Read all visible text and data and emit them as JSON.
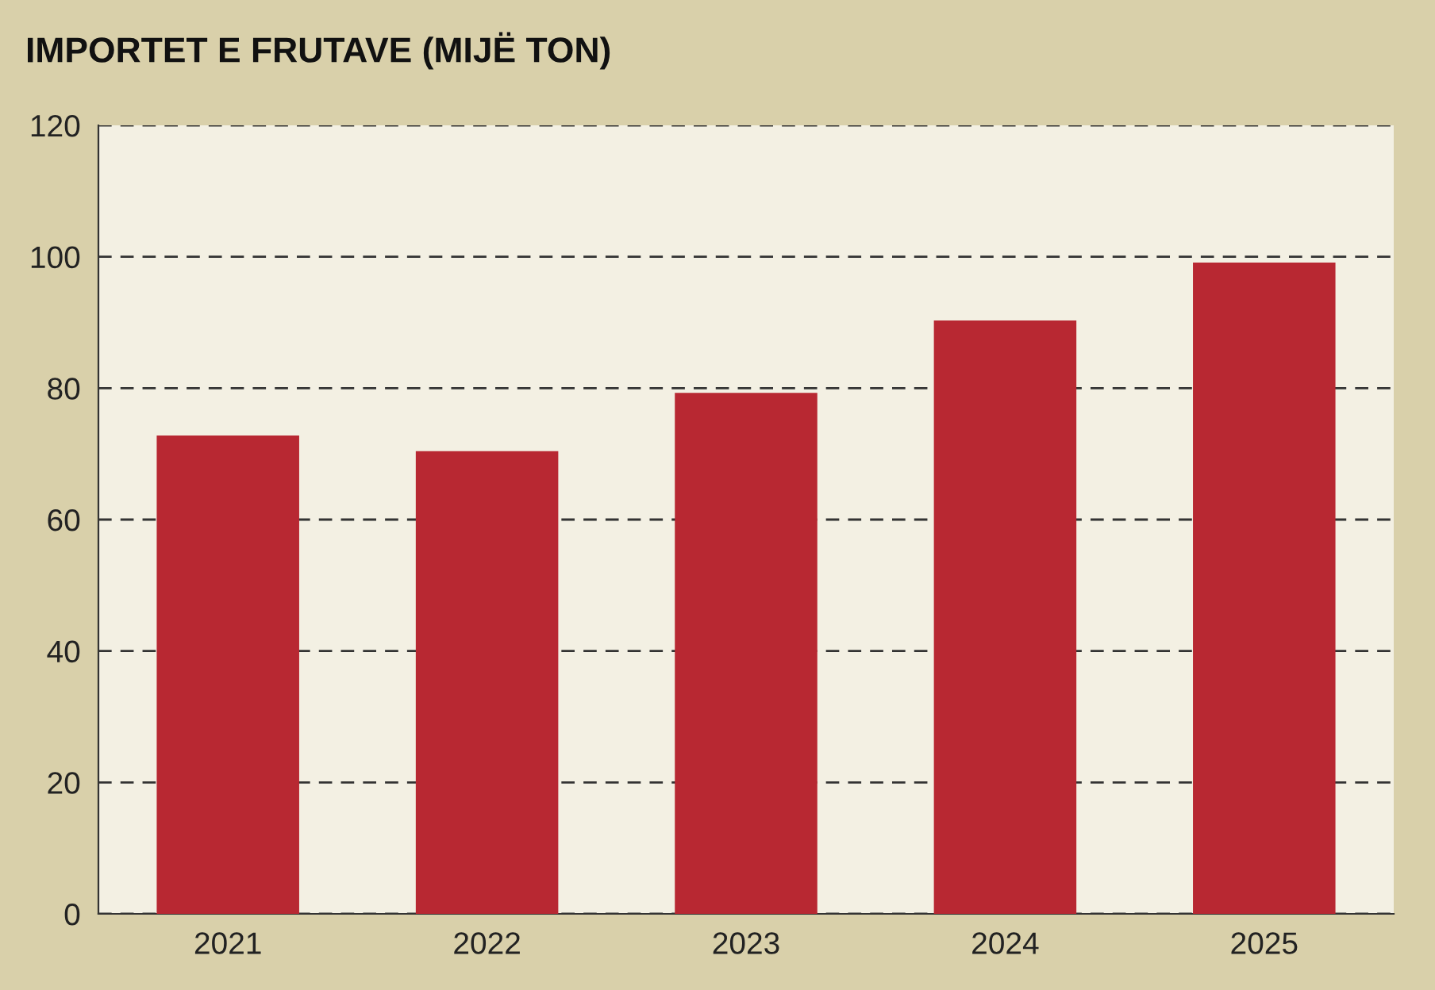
{
  "chart_data": {
    "type": "bar",
    "title": "IMPORTET E FRUTAVE (MIJË TON)",
    "categories": [
      "2021",
      "2022",
      "2023",
      "2024",
      "2025"
    ],
    "values": [
      72.8,
      70.4,
      79.3,
      90.3,
      99.1
    ],
    "color": "#b82832",
    "ylim": [
      0,
      120
    ],
    "yticks": [
      0,
      20,
      40,
      60,
      80,
      100,
      120
    ],
    "grid": "y",
    "line_style": "dashed"
  }
}
